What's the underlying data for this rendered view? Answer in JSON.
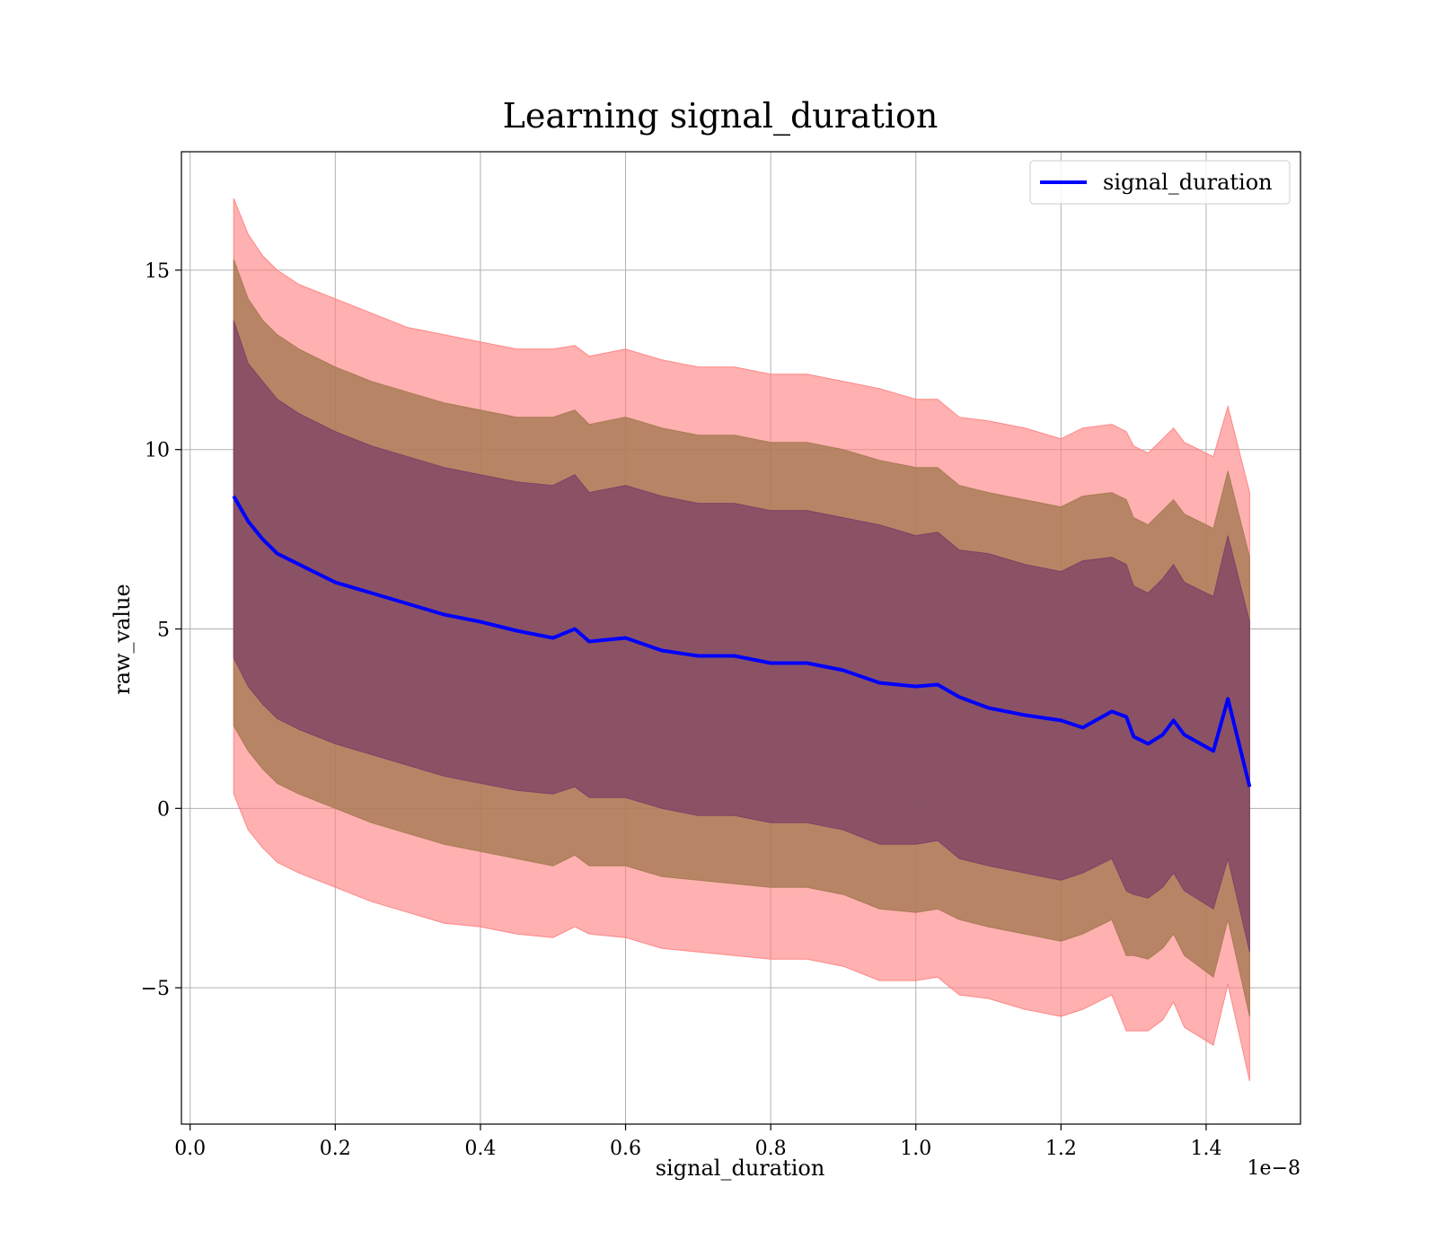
{
  "chart_data": {
    "type": "line",
    "title": "Learning signal_duration",
    "xlabel": "signal_duration",
    "ylabel": "raw_value",
    "x_offset_text": "1e−8",
    "xlim": [
      -0.012,
      1.53
    ],
    "ylim": [
      -8.8,
      18.3
    ],
    "x_ticks": [
      0.0,
      0.2,
      0.4,
      0.6,
      0.8,
      1.0,
      1.2,
      1.4
    ],
    "x_tick_labels": [
      "0.0",
      "0.2",
      "0.4",
      "0.6",
      "0.8",
      "1.0",
      "1.2",
      "1.4"
    ],
    "y_ticks": [
      -5,
      0,
      5,
      10,
      15
    ],
    "y_tick_labels": [
      "−5",
      "0",
      "5",
      "10",
      "15"
    ],
    "grid": true,
    "legend": {
      "position": "top-right",
      "entries": [
        "signal_duration"
      ]
    },
    "colors": {
      "line": "#0000ff",
      "band_outer": "#ff8080",
      "band_mid": "#a3784f",
      "band_inner": "#7a3f66"
    },
    "x": [
      0.06,
      0.08,
      0.1,
      0.12,
      0.15,
      0.2,
      0.25,
      0.3,
      0.35,
      0.4,
      0.45,
      0.5,
      0.53,
      0.55,
      0.6,
      0.65,
      0.7,
      0.75,
      0.8,
      0.85,
      0.9,
      0.95,
      1.0,
      1.03,
      1.06,
      1.1,
      1.15,
      1.2,
      1.23,
      1.27,
      1.29,
      1.3,
      1.32,
      1.34,
      1.355,
      1.37,
      1.41,
      1.43,
      1.46
    ],
    "series": [
      {
        "name": "signal_duration",
        "values": [
          8.7,
          8.0,
          7.5,
          7.1,
          6.8,
          6.3,
          6.0,
          5.7,
          5.4,
          5.2,
          4.95,
          4.75,
          5.0,
          4.65,
          4.75,
          4.4,
          4.25,
          4.25,
          4.05,
          4.05,
          3.85,
          3.5,
          3.4,
          3.45,
          3.1,
          2.8,
          2.6,
          2.45,
          2.25,
          2.7,
          2.55,
          2.0,
          1.8,
          2.05,
          2.45,
          2.05,
          1.6,
          3.05,
          0.6
        ]
      }
    ],
    "bands": [
      {
        "role": "outer",
        "upper": [
          17.0,
          16.0,
          15.4,
          15.0,
          14.6,
          14.2,
          13.8,
          13.4,
          13.2,
          13.0,
          12.8,
          12.8,
          12.9,
          12.6,
          12.8,
          12.5,
          12.3,
          12.3,
          12.1,
          12.1,
          11.9,
          11.7,
          11.4,
          11.4,
          10.9,
          10.8,
          10.6,
          10.3,
          10.6,
          10.7,
          10.5,
          10.1,
          9.9,
          10.3,
          10.6,
          10.2,
          9.8,
          11.2,
          8.8
        ],
        "lower": [
          0.4,
          -0.6,
          -1.1,
          -1.5,
          -1.8,
          -2.2,
          -2.6,
          -2.9,
          -3.2,
          -3.3,
          -3.5,
          -3.6,
          -3.3,
          -3.5,
          -3.6,
          -3.9,
          -4.0,
          -4.1,
          -4.2,
          -4.2,
          -4.4,
          -4.8,
          -4.8,
          -4.7,
          -5.2,
          -5.3,
          -5.6,
          -5.8,
          -5.6,
          -5.2,
          -6.2,
          -6.2,
          -6.2,
          -5.9,
          -5.4,
          -6.1,
          -6.6,
          -4.9,
          -7.6
        ]
      },
      {
        "role": "middle",
        "upper": [
          15.3,
          14.2,
          13.6,
          13.2,
          12.8,
          12.3,
          11.9,
          11.6,
          11.3,
          11.1,
          10.9,
          10.9,
          11.1,
          10.7,
          10.9,
          10.6,
          10.4,
          10.4,
          10.2,
          10.2,
          10.0,
          9.7,
          9.5,
          9.5,
          9.0,
          8.8,
          8.6,
          8.4,
          8.7,
          8.8,
          8.6,
          8.1,
          7.9,
          8.3,
          8.6,
          8.2,
          7.8,
          9.4,
          7.0
        ],
        "lower": [
          2.3,
          1.6,
          1.1,
          0.7,
          0.4,
          0.0,
          -0.4,
          -0.7,
          -1.0,
          -1.2,
          -1.4,
          -1.6,
          -1.3,
          -1.6,
          -1.6,
          -1.9,
          -2.0,
          -2.1,
          -2.2,
          -2.2,
          -2.4,
          -2.8,
          -2.9,
          -2.8,
          -3.1,
          -3.3,
          -3.5,
          -3.7,
          -3.5,
          -3.1,
          -4.1,
          -4.1,
          -4.2,
          -3.9,
          -3.5,
          -4.1,
          -4.7,
          -3.1,
          -5.8
        ]
      },
      {
        "role": "inner",
        "upper": [
          13.6,
          12.4,
          11.9,
          11.4,
          11.0,
          10.5,
          10.1,
          9.8,
          9.5,
          9.3,
          9.1,
          9.0,
          9.3,
          8.8,
          9.0,
          8.7,
          8.5,
          8.5,
          8.3,
          8.3,
          8.1,
          7.9,
          7.6,
          7.7,
          7.2,
          7.1,
          6.8,
          6.6,
          6.9,
          7.0,
          6.8,
          6.2,
          6.0,
          6.4,
          6.8,
          6.3,
          5.9,
          7.6,
          5.2
        ],
        "lower": [
          4.2,
          3.4,
          2.9,
          2.5,
          2.2,
          1.8,
          1.5,
          1.2,
          0.9,
          0.7,
          0.5,
          0.4,
          0.6,
          0.3,
          0.3,
          0.0,
          -0.2,
          -0.2,
          -0.4,
          -0.4,
          -0.6,
          -1.0,
          -1.0,
          -0.9,
          -1.4,
          -1.6,
          -1.8,
          -2.0,
          -1.8,
          -1.4,
          -2.3,
          -2.4,
          -2.5,
          -2.2,
          -1.8,
          -2.3,
          -2.8,
          -1.4,
          -4.0
        ]
      }
    ]
  }
}
